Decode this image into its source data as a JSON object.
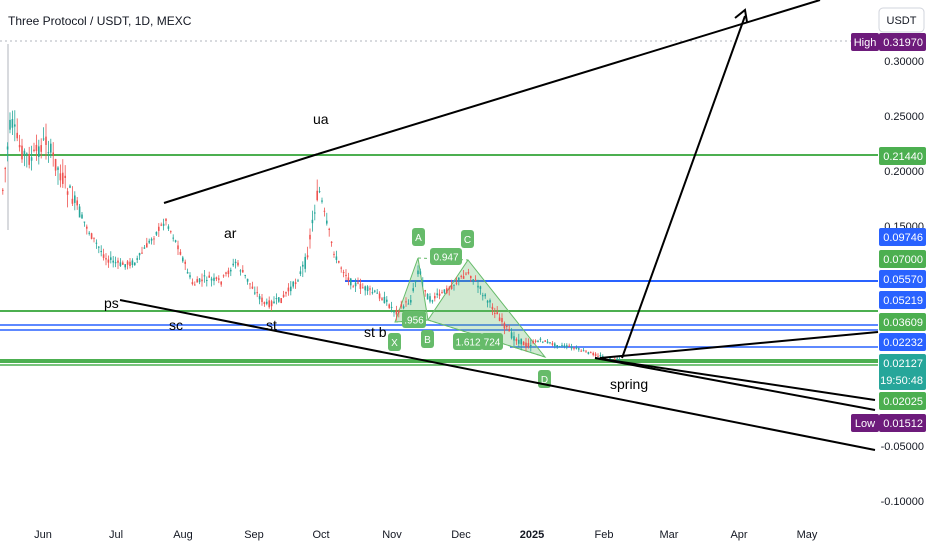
{
  "chart_data": {
    "type": "candlestick",
    "title": "Three Protocol / USDT, 1D, MEXC",
    "currency": "USDT",
    "y_ticks": [
      "0.30000",
      "0.25000",
      "0.20000",
      "0.15000",
      "-0.05000",
      "-0.10000"
    ],
    "x_ticks": [
      "Jun",
      "Jul",
      "Aug",
      "Sep",
      "Oct",
      "Nov",
      "Dec",
      "2025",
      "Feb",
      "Mar",
      "Apr",
      "May"
    ],
    "price_levels": [
      {
        "label": "High",
        "value": "0.31970",
        "color": "#6d1b7b"
      },
      {
        "value": "0.21440",
        "color": "#4caf50"
      },
      {
        "value": "0.09746",
        "color": "#2962ff"
      },
      {
        "value": "0.07000",
        "color": "#4caf50"
      },
      {
        "value": "0.05570",
        "color": "#2962ff"
      },
      {
        "value": "0.05219",
        "color": "#2962ff"
      },
      {
        "value": "0.03609",
        "color": "#4caf50"
      },
      {
        "value": "0.02232",
        "color": "#2962ff"
      },
      {
        "value": "0.02127",
        "sub": "19:50:48",
        "color": "#26a69a"
      },
      {
        "value": "0.02025",
        "color": "#4caf50"
      },
      {
        "label": "Low",
        "value": "0.01512",
        "color": "#6d1b7b"
      }
    ],
    "annotations": [
      "ps",
      "sc",
      "ar",
      "st",
      "ua",
      "st b",
      "spring"
    ],
    "harmonic_pattern": {
      "points": [
        "X",
        "A",
        "B",
        "C",
        "D"
      ],
      "ratios": [
        "0.947",
        ".956",
        "1.612",
        "724"
      ]
    },
    "colors": {
      "up": "#26a69a",
      "down": "#ef5350",
      "support": "#4caf50",
      "resistance": "#2962ff",
      "pattern": "#66bb6a"
    }
  }
}
